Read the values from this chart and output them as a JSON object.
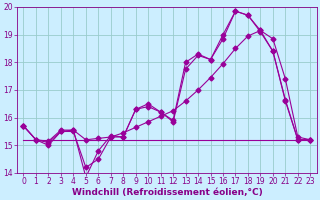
{
  "xlabel": "Windchill (Refroidissement éolien,°C)",
  "xlim": [
    -0.5,
    23.5
  ],
  "ylim": [
    14,
    20
  ],
  "yticks": [
    14,
    15,
    16,
    17,
    18,
    19,
    20
  ],
  "xticks": [
    0,
    1,
    2,
    3,
    4,
    5,
    6,
    7,
    8,
    9,
    10,
    11,
    12,
    13,
    14,
    15,
    16,
    17,
    18,
    19,
    20,
    21,
    22,
    23
  ],
  "bg_color": "#cceeff",
  "grid_color": "#99cccc",
  "line_color": "#990099",
  "line1_y": [
    15.7,
    15.2,
    15.0,
    15.5,
    15.5,
    14.2,
    14.5,
    15.3,
    15.3,
    16.3,
    16.4,
    16.2,
    15.9,
    18.0,
    18.3,
    18.1,
    19.0,
    19.85,
    19.7,
    19.1,
    18.4,
    16.6,
    15.2,
    15.2
  ],
  "line2_y": [
    15.7,
    15.2,
    15.1,
    15.5,
    15.55,
    13.85,
    14.8,
    15.35,
    15.3,
    16.3,
    16.5,
    16.2,
    15.85,
    17.75,
    18.25,
    18.1,
    18.85,
    19.85,
    19.7,
    19.15,
    18.4,
    16.65,
    15.2,
    15.2
  ],
  "line3_y": [
    15.7,
    15.2,
    15.15,
    15.55,
    15.55,
    15.2,
    15.25,
    15.3,
    15.45,
    15.65,
    15.85,
    16.05,
    16.25,
    16.6,
    17.0,
    17.45,
    17.95,
    18.5,
    18.95,
    19.15,
    18.85,
    17.4,
    15.3,
    15.2
  ],
  "line4_y": [
    15.2,
    15.2
  ],
  "line4_x": [
    0,
    23
  ],
  "marker_size": 2.5,
  "font_color": "#880088",
  "font_size_label": 6.5,
  "font_size_tick": 5.5
}
